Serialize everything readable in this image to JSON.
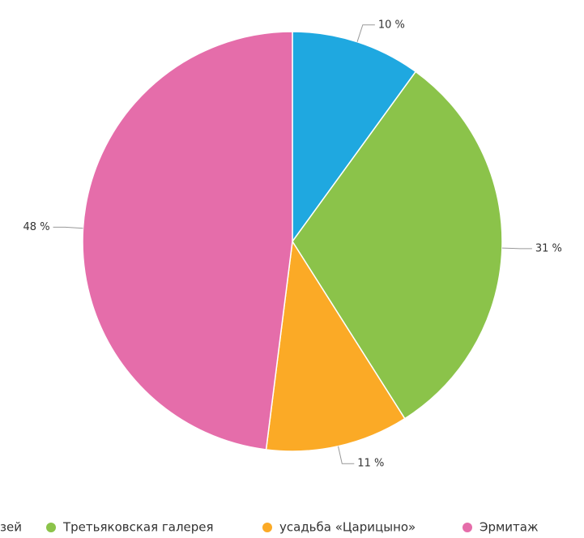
{
  "chart_data": {
    "type": "pie",
    "categories": [
      "зей",
      "Третьяковская галерея",
      "усадьба «Царицыно»",
      "Эрмитаж"
    ],
    "values": [
      10,
      31,
      11,
      48
    ],
    "value_labels": [
      "10 %",
      "31 %",
      "11 %",
      "48 %"
    ],
    "colors": [
      "#1fa8e0",
      "#8bc34a",
      "#fbaa26",
      "#e56daa"
    ],
    "legend": "bottom"
  }
}
